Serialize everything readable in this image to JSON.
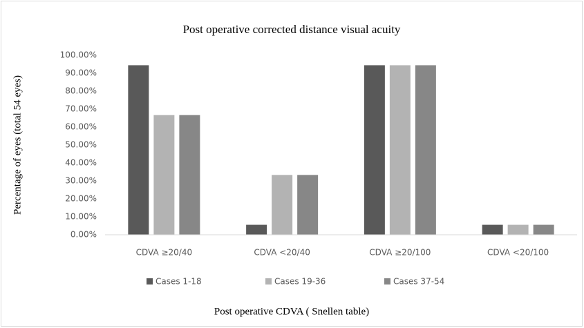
{
  "chart_data": {
    "type": "bar",
    "title": "Post operative corrected distance visual acuity",
    "x_label": "Post operative CDVA ( Snellen table)",
    "y_label": "Percentage of eyes (total 54 eyes)",
    "categories": [
      "CDVA  ≥20/40",
      "CDVA  <20/40",
      "CDVA  ≥20/100",
      "CDVA  <20/100"
    ],
    "series": [
      {
        "name": "Cases 1-18",
        "color": "#595959",
        "values": [
          94.44,
          5.56,
          94.44,
          5.56
        ]
      },
      {
        "name": "Cases 19-36",
        "color": "#b3b3b3",
        "values": [
          66.67,
          33.33,
          94.44,
          5.56
        ]
      },
      {
        "name": "Cases 37-54",
        "color": "#878787",
        "values": [
          66.67,
          33.33,
          94.44,
          5.56
        ]
      }
    ],
    "ylim": [
      0,
      100
    ],
    "yticks": [
      {
        "value": 0,
        "label": "0.00%"
      },
      {
        "value": 10,
        "label": "10.00%"
      },
      {
        "value": 20,
        "label": "20.00%"
      },
      {
        "value": 30,
        "label": "30.00%"
      },
      {
        "value": 40,
        "label": "40.00%"
      },
      {
        "value": 50,
        "label": "50.00%"
      },
      {
        "value": 60,
        "label": "60.00%"
      },
      {
        "value": 70,
        "label": "70.00%"
      },
      {
        "value": 80,
        "label": "80.00%"
      },
      {
        "value": 90,
        "label": "90.00%"
      },
      {
        "value": 100,
        "label": "100.00%"
      }
    ],
    "grid": false,
    "legend": "bottom"
  }
}
